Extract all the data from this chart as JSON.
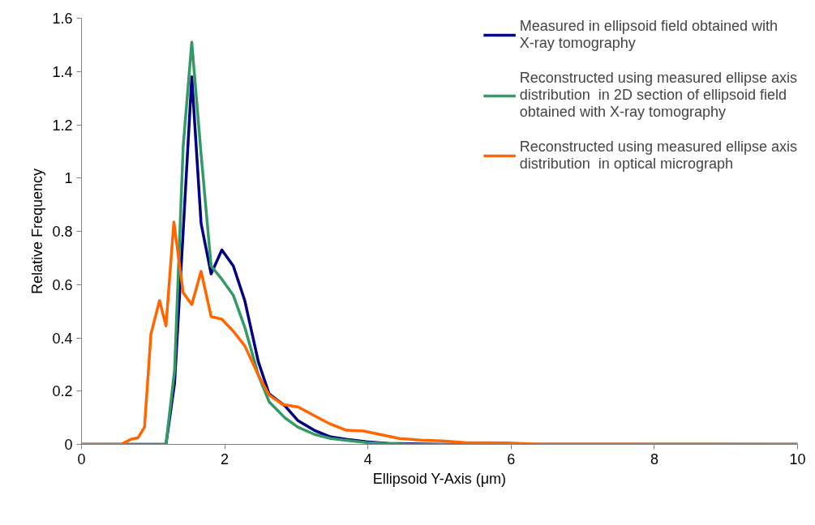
{
  "chart_data": {
    "type": "line",
    "xlabel": "Ellipsoid Y-Axis (μm)",
    "ylabel": "Relative Frequency",
    "xlim": [
      0,
      10
    ],
    "xticks": [
      0,
      2,
      4,
      6,
      8,
      10
    ],
    "ylim": [
      0,
      1.6
    ],
    "yticks": [
      0,
      0.2,
      0.4,
      0.6,
      0.8,
      1,
      1.2,
      1.4,
      1.6
    ],
    "grid": false,
    "legend": "top right",
    "marker": "none",
    "line_style": "solid",
    "series": [
      {
        "name": "Measured in ellipsoid field obtained with X-ray tomography",
        "color": "#000080",
        "x": [
          0,
          1.18,
          1.3,
          1.42,
          1.54,
          1.67,
          1.81,
          1.96,
          2.12,
          2.28,
          2.47,
          2.62,
          2.84,
          3.02,
          3.25,
          3.48,
          3.7,
          3.98,
          4.28,
          4.6,
          5,
          10
        ],
        "values": [
          0,
          0,
          0.23,
          0.8,
          1.38,
          0.83,
          0.64,
          0.73,
          0.67,
          0.54,
          0.31,
          0.19,
          0.145,
          0.09,
          0.053,
          0.028,
          0.019,
          0.01,
          0.004,
          0.002,
          0,
          0
        ]
      },
      {
        "name": "Reconstructed using measured ellipse axis distribution  in 2D section of ellipsoid field obtained with X-ray tomography",
        "color": "#339966",
        "x": [
          0,
          1.18,
          1.3,
          1.42,
          1.54,
          1.67,
          1.81,
          1.96,
          2.12,
          2.28,
          2.47,
          2.62,
          2.84,
          3.02,
          3.25,
          3.48,
          3.7,
          3.98,
          4.28,
          4.6,
          10
        ],
        "values": [
          0,
          0,
          0.28,
          1.12,
          1.51,
          1.09,
          0.67,
          0.62,
          0.56,
          0.44,
          0.26,
          0.16,
          0.1,
          0.065,
          0.038,
          0.022,
          0.015,
          0.007,
          0.003,
          0,
          0
        ]
      },
      {
        "name": "Reconstructed using measured ellipse axis distribution  in optical micrograph",
        "color": "#ff6600",
        "x": [
          0,
          0.55,
          0.7,
          0.79,
          0.88,
          0.97,
          1.09,
          1.18,
          1.29,
          1.42,
          1.54,
          1.67,
          1.81,
          1.96,
          2.12,
          2.28,
          2.47,
          2.62,
          2.81,
          3.03,
          3.25,
          3.47,
          3.7,
          3.94,
          4.21,
          4.44,
          4.74,
          5.04,
          5.35,
          5.96,
          6.38,
          10
        ],
        "values": [
          0,
          0,
          0.02,
          0.025,
          0.065,
          0.415,
          0.54,
          0.445,
          0.835,
          0.57,
          0.525,
          0.65,
          0.48,
          0.47,
          0.425,
          0.37,
          0.26,
          0.185,
          0.15,
          0.14,
          0.108,
          0.077,
          0.053,
          0.05,
          0.035,
          0.022,
          0.016,
          0.013,
          0.007,
          0.005,
          0.001,
          0
        ]
      }
    ]
  }
}
